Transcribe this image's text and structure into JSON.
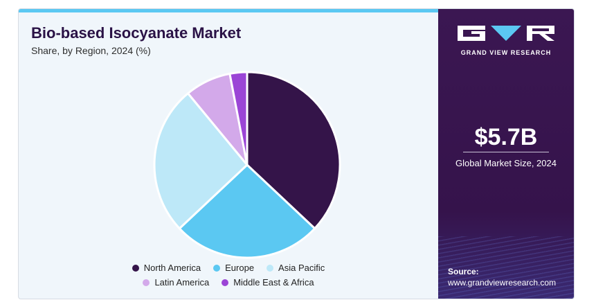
{
  "chart_data": {
    "type": "pie",
    "title": "Bio-based Isocyanate Market",
    "subtitle": "Share, by Region, 2024 (%)",
    "series": [
      {
        "name": "North America",
        "value": 37,
        "color": "#341449"
      },
      {
        "name": "Europe",
        "value": 26,
        "color": "#5bc8f2"
      },
      {
        "name": "Asia Pacific",
        "value": 26,
        "color": "#bde8f8"
      },
      {
        "name": "Latin America",
        "value": 8,
        "color": "#d3a9ea"
      },
      {
        "name": "Middle East & Africa",
        "value": 3,
        "color": "#9b45d6"
      }
    ],
    "legend_position": "bottom"
  },
  "side_panel": {
    "brand": "GRAND VIEW RESEARCH",
    "market_value": "$5.7B",
    "market_label": "Global Market Size, 2024",
    "source_label": "Source:",
    "source_url": "www.grandviewresearch.com"
  }
}
